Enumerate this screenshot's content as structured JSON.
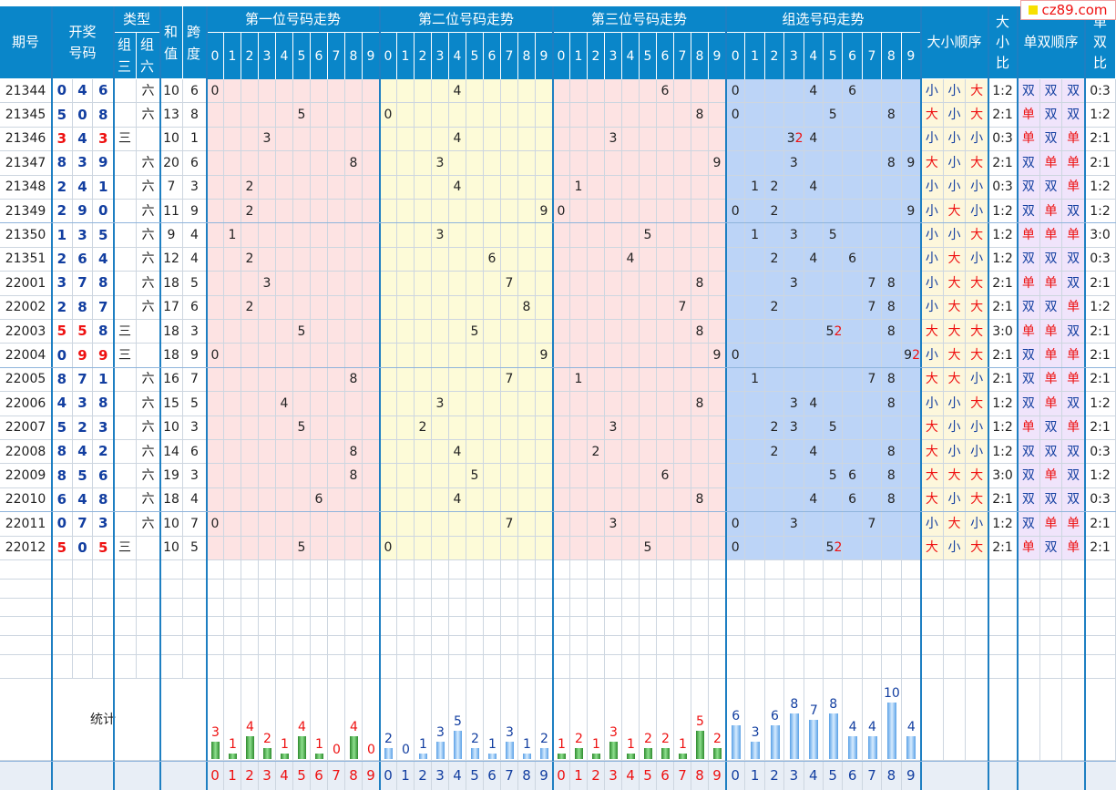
{
  "logo": "cz89.com",
  "headers": {
    "period": "期号",
    "draw": "开奖号码",
    "type": "类型",
    "group3": "组三",
    "group6": "组六",
    "sum": "和值",
    "span": "跨度",
    "pos1": "第一位号码走势",
    "pos2": "第二位号码走势",
    "pos3": "第三位号码走势",
    "combo": "组选号码走势",
    "size_order": "大小顺序",
    "size_ratio": "大小比",
    "oe_order": "单双顺序",
    "oe_ratio": "单双比"
  },
  "digits": [
    "0",
    "1",
    "2",
    "3",
    "4",
    "5",
    "6",
    "7",
    "8",
    "9"
  ],
  "rows": [
    {
      "period": "21344",
      "n": [
        0,
        4,
        6
      ],
      "type": "六",
      "sum": 10,
      "span": 6,
      "combo": [
        [
          0,
          1
        ],
        [
          4,
          1
        ],
        [
          6,
          1
        ]
      ],
      "size": [
        "小",
        "小",
        "大"
      ],
      "sr": "1:2",
      "oe": [
        "双",
        "双",
        "双"
      ],
      "oer": "0:3"
    },
    {
      "period": "21345",
      "n": [
        5,
        0,
        8
      ],
      "type": "六",
      "sum": 13,
      "span": 8,
      "combo": [
        [
          0,
          1
        ],
        [
          5,
          1
        ],
        [
          8,
          1
        ]
      ],
      "size": [
        "大",
        "小",
        "大"
      ],
      "sr": "2:1",
      "oe": [
        "单",
        "双",
        "双"
      ],
      "oer": "1:2"
    },
    {
      "period": "21346",
      "n": [
        3,
        4,
        3
      ],
      "type": "三",
      "sum": 10,
      "span": 1,
      "combo": [
        [
          3,
          2
        ],
        [
          4,
          1
        ]
      ],
      "size": [
        "小",
        "小",
        "小"
      ],
      "sr": "0:3",
      "oe": [
        "单",
        "双",
        "单"
      ],
      "oer": "2:1"
    },
    {
      "period": "21347",
      "n": [
        8,
        3,
        9
      ],
      "type": "六",
      "sum": 20,
      "span": 6,
      "combo": [
        [
          3,
          1
        ],
        [
          8,
          1
        ],
        [
          9,
          1
        ]
      ],
      "size": [
        "大",
        "小",
        "大"
      ],
      "sr": "2:1",
      "oe": [
        "双",
        "单",
        "单"
      ],
      "oer": "2:1"
    },
    {
      "period": "21348",
      "n": [
        2,
        4,
        1
      ],
      "type": "六",
      "sum": 7,
      "span": 3,
      "combo": [
        [
          1,
          1
        ],
        [
          2,
          1
        ],
        [
          4,
          1
        ]
      ],
      "size": [
        "小",
        "小",
        "小"
      ],
      "sr": "0:3",
      "oe": [
        "双",
        "双",
        "单"
      ],
      "oer": "1:2"
    },
    {
      "period": "21349",
      "n": [
        2,
        9,
        0
      ],
      "type": "六",
      "sum": 11,
      "span": 9,
      "combo": [
        [
          0,
          1
        ],
        [
          2,
          1
        ],
        [
          9,
          1
        ]
      ],
      "size": [
        "小",
        "大",
        "小"
      ],
      "sr": "1:2",
      "oe": [
        "双",
        "单",
        "双"
      ],
      "oer": "1:2"
    },
    {
      "period": "21350",
      "n": [
        1,
        3,
        5
      ],
      "type": "六",
      "sum": 9,
      "span": 4,
      "combo": [
        [
          1,
          1
        ],
        [
          3,
          1
        ],
        [
          5,
          1
        ]
      ],
      "size": [
        "小",
        "小",
        "大"
      ],
      "sr": "1:2",
      "oe": [
        "单",
        "单",
        "单"
      ],
      "oer": "3:0"
    },
    {
      "period": "21351",
      "n": [
        2,
        6,
        4
      ],
      "type": "六",
      "sum": 12,
      "span": 4,
      "combo": [
        [
          2,
          1
        ],
        [
          4,
          1
        ],
        [
          6,
          1
        ]
      ],
      "size": [
        "小",
        "大",
        "小"
      ],
      "sr": "1:2",
      "oe": [
        "双",
        "双",
        "双"
      ],
      "oer": "0:3"
    },
    {
      "period": "22001",
      "n": [
        3,
        7,
        8
      ],
      "type": "六",
      "sum": 18,
      "span": 5,
      "combo": [
        [
          3,
          1
        ],
        [
          7,
          1
        ],
        [
          8,
          1
        ]
      ],
      "size": [
        "小",
        "大",
        "大"
      ],
      "sr": "2:1",
      "oe": [
        "单",
        "单",
        "双"
      ],
      "oer": "2:1"
    },
    {
      "period": "22002",
      "n": [
        2,
        8,
        7
      ],
      "type": "六",
      "sum": 17,
      "span": 6,
      "combo": [
        [
          2,
          1
        ],
        [
          7,
          1
        ],
        [
          8,
          1
        ]
      ],
      "size": [
        "小",
        "大",
        "大"
      ],
      "sr": "2:1",
      "oe": [
        "双",
        "双",
        "单"
      ],
      "oer": "1:2"
    },
    {
      "period": "22003",
      "n": [
        5,
        5,
        8
      ],
      "type": "三",
      "sum": 18,
      "span": 3,
      "combo": [
        [
          5,
          2
        ],
        [
          8,
          1
        ]
      ],
      "size": [
        "大",
        "大",
        "大"
      ],
      "sr": "3:0",
      "oe": [
        "单",
        "单",
        "双"
      ],
      "oer": "2:1"
    },
    {
      "period": "22004",
      "n": [
        0,
        9,
        9
      ],
      "type": "三",
      "sum": 18,
      "span": 9,
      "combo": [
        [
          0,
          1
        ],
        [
          9,
          2
        ]
      ],
      "size": [
        "小",
        "大",
        "大"
      ],
      "sr": "2:1",
      "oe": [
        "双",
        "单",
        "单"
      ],
      "oer": "2:1"
    },
    {
      "period": "22005",
      "n": [
        8,
        7,
        1
      ],
      "type": "六",
      "sum": 16,
      "span": 7,
      "combo": [
        [
          1,
          1
        ],
        [
          7,
          1
        ],
        [
          8,
          1
        ]
      ],
      "size": [
        "大",
        "大",
        "小"
      ],
      "sr": "2:1",
      "oe": [
        "双",
        "单",
        "单"
      ],
      "oer": "2:1"
    },
    {
      "period": "22006",
      "n": [
        4,
        3,
        8
      ],
      "type": "六",
      "sum": 15,
      "span": 5,
      "combo": [
        [
          3,
          1
        ],
        [
          4,
          1
        ],
        [
          8,
          1
        ]
      ],
      "size": [
        "小",
        "小",
        "大"
      ],
      "sr": "1:2",
      "oe": [
        "双",
        "单",
        "双"
      ],
      "oer": "1:2"
    },
    {
      "period": "22007",
      "n": [
        5,
        2,
        3
      ],
      "type": "六",
      "sum": 10,
      "span": 3,
      "combo": [
        [
          2,
          1
        ],
        [
          3,
          1
        ],
        [
          5,
          1
        ]
      ],
      "size": [
        "大",
        "小",
        "小"
      ],
      "sr": "1:2",
      "oe": [
        "单",
        "双",
        "单"
      ],
      "oer": "2:1"
    },
    {
      "period": "22008",
      "n": [
        8,
        4,
        2
      ],
      "type": "六",
      "sum": 14,
      "span": 6,
      "combo": [
        [
          2,
          1
        ],
        [
          4,
          1
        ],
        [
          8,
          1
        ]
      ],
      "size": [
        "大",
        "小",
        "小"
      ],
      "sr": "1:2",
      "oe": [
        "双",
        "双",
        "双"
      ],
      "oer": "0:3"
    },
    {
      "period": "22009",
      "n": [
        8,
        5,
        6
      ],
      "type": "六",
      "sum": 19,
      "span": 3,
      "combo": [
        [
          5,
          1
        ],
        [
          6,
          1
        ],
        [
          8,
          1
        ]
      ],
      "size": [
        "大",
        "大",
        "大"
      ],
      "sr": "3:0",
      "oe": [
        "双",
        "单",
        "双"
      ],
      "oer": "1:2"
    },
    {
      "period": "22010",
      "n": [
        6,
        4,
        8
      ],
      "type": "六",
      "sum": 18,
      "span": 4,
      "combo": [
        [
          4,
          1
        ],
        [
          6,
          1
        ],
        [
          8,
          1
        ]
      ],
      "size": [
        "大",
        "小",
        "大"
      ],
      "sr": "2:1",
      "oe": [
        "双",
        "双",
        "双"
      ],
      "oer": "0:3"
    },
    {
      "period": "22011",
      "n": [
        0,
        7,
        3
      ],
      "type": "六",
      "sum": 10,
      "span": 7,
      "combo": [
        [
          0,
          1
        ],
        [
          3,
          1
        ],
        [
          7,
          1
        ]
      ],
      "size": [
        "小",
        "大",
        "小"
      ],
      "sr": "1:2",
      "oe": [
        "双",
        "单",
        "单"
      ],
      "oer": "2:1"
    },
    {
      "period": "22012",
      "n": [
        5,
        0,
        5
      ],
      "type": "三",
      "sum": 10,
      "span": 5,
      "combo": [
        [
          0,
          1
        ],
        [
          5,
          2
        ]
      ],
      "size": [
        "大",
        "小",
        "大"
      ],
      "sr": "2:1",
      "oe": [
        "单",
        "双",
        "单"
      ],
      "oer": "2:1"
    }
  ],
  "stats_label": "统计",
  "stats": {
    "pos1": [
      3,
      1,
      4,
      2,
      1,
      4,
      1,
      0,
      4,
      0
    ],
    "pos2": [
      2,
      0,
      1,
      3,
      5,
      2,
      1,
      3,
      1,
      2
    ],
    "pos3": [
      1,
      2,
      1,
      3,
      1,
      2,
      2,
      1,
      5,
      2
    ],
    "combo": [
      6,
      3,
      6,
      8,
      7,
      8,
      4,
      4,
      10,
      4
    ]
  },
  "colors": {
    "header": "#0a86c9",
    "pink": "#fde3e3",
    "yellow": "#fdfbd8",
    "blue": "#bcd4f7",
    "red": "#e11111",
    "navy": "#123ea0"
  }
}
